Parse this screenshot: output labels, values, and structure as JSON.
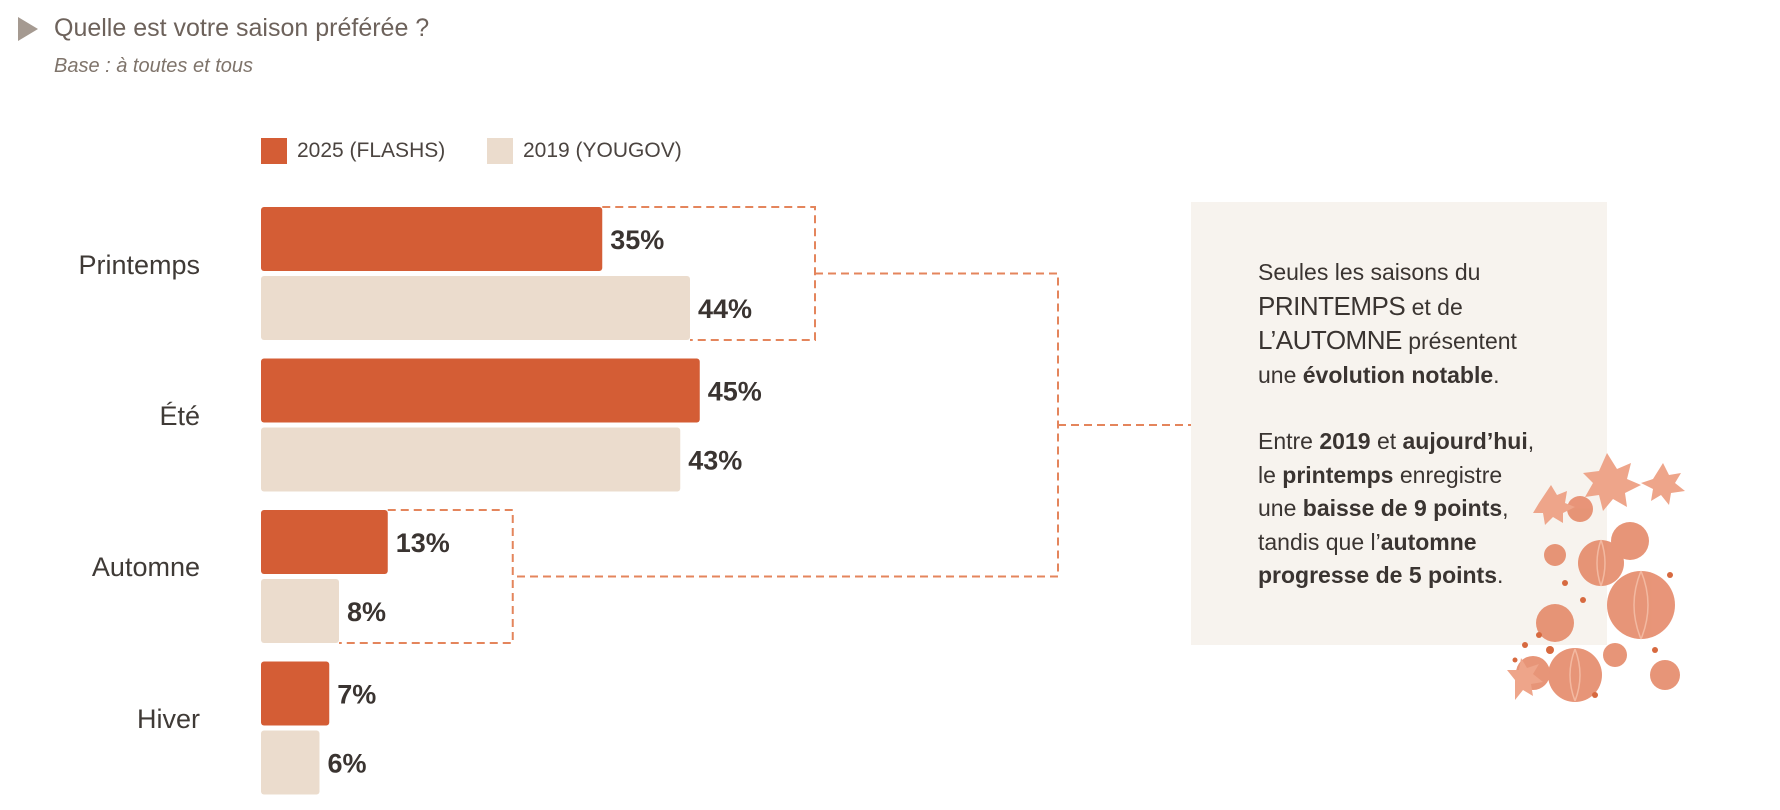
{
  "header": {
    "title": "Quelle est votre saison préférée ?",
    "subtitle": "Base : à toutes et tous"
  },
  "colors": {
    "series_2025": "#d45d35",
    "series_2019": "#ebdccd",
    "bracket": "#e4855c",
    "panel": "#f7f3ee"
  },
  "chart_data": {
    "type": "bar",
    "orientation": "horizontal",
    "categories": [
      "Printemps",
      "Été",
      "Automne",
      "Hiver"
    ],
    "series": [
      {
        "name": "2025 (FLASHS)",
        "values": [
          35,
          45,
          13,
          7
        ],
        "labels": [
          "35%",
          "45%",
          "13%",
          "7%"
        ]
      },
      {
        "name": "2019 (YOUGOV)",
        "values": [
          44,
          43,
          8,
          6
        ],
        "labels": [
          "44%",
          "43%",
          "8%",
          "6%"
        ]
      }
    ],
    "legend": "top-left",
    "highlighted_categories": [
      "Printemps",
      "Automne"
    ],
    "grid": false
  },
  "note": {
    "p1_a": "Seules les saisons du",
    "p1_b": "PRINTEMPS",
    "p1_c": "et de",
    "p1_d": "L’AUTOMNE",
    "p1_e": "présentent",
    "p1_f": "une",
    "p1_g": "évolution notable",
    "p1_h": ".",
    "p2_a": "Entre",
    "p2_b": "2019",
    "p2_c": "et",
    "p2_d": "aujourd’hui",
    "p2_e": ",",
    "p2_f": "le",
    "p2_g": "printemps",
    "p2_h": "enregistre",
    "p2_i": "une",
    "p2_j": "baisse de 9 points",
    "p2_k": ",",
    "p2_l": "tandis que l’",
    "p2_m": "automne",
    "p2_n": "progresse de 5 points",
    "p2_o": "."
  },
  "decoration": {
    "icon": "autumn-pumpkins-leaves-illustration"
  }
}
